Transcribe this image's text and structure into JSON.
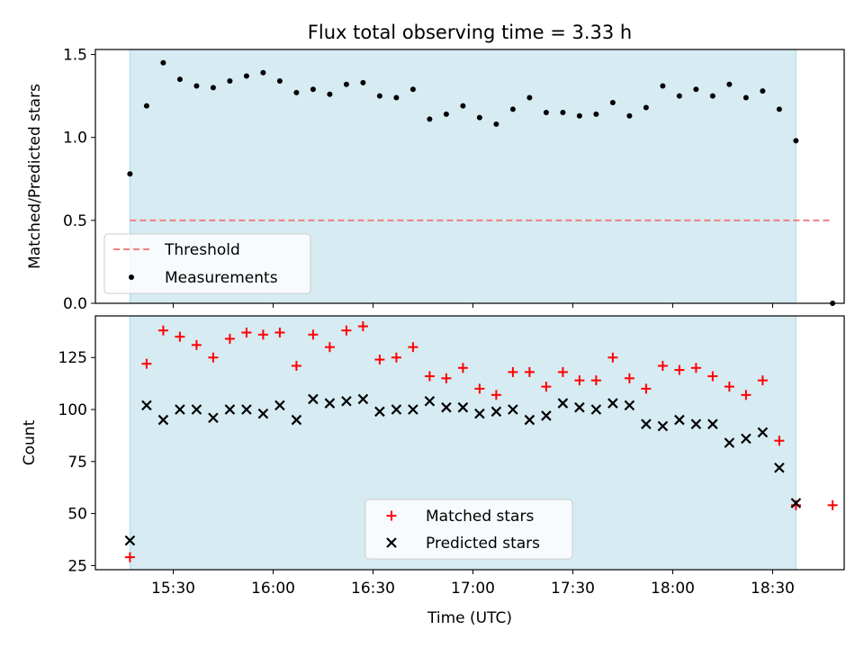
{
  "figure": {
    "title": "Flux total observing time = 3.33 h"
  },
  "colors": {
    "shade": "#add8e6",
    "threshold": "#f08080",
    "measurement": "#000000",
    "matched": "#ff0000",
    "predicted": "#000000"
  },
  "chart_data": [
    {
      "type": "scatter",
      "title": "Flux total observing time = 3.33 h",
      "xlabel": "",
      "ylabel": "Matched/Predicted stars",
      "ylim": [
        0,
        1.53
      ],
      "yticks": [
        "0.0",
        "0.5",
        "1.0",
        "1.5"
      ],
      "grid": false,
      "legend_position": "lower-left",
      "legend": [
        "Threshold",
        "Measurements"
      ],
      "shaded_span": {
        "x_start": "15:17",
        "x_end": "18:37"
      },
      "threshold": {
        "name": "Threshold",
        "y": 0.5,
        "x_start": "15:17",
        "x_end": "18:48",
        "style": "dashed"
      },
      "series": [
        {
          "name": "Measurements",
          "marker": "dot",
          "x": [
            "15:17",
            "15:22",
            "15:27",
            "15:32",
            "15:37",
            "15:42",
            "15:47",
            "15:52",
            "15:57",
            "16:02",
            "16:07",
            "16:12",
            "16:17",
            "16:22",
            "16:27",
            "16:32",
            "16:37",
            "16:42",
            "16:47",
            "16:52",
            "16:57",
            "17:02",
            "17:07",
            "17:12",
            "17:17",
            "17:22",
            "17:27",
            "17:32",
            "17:37",
            "17:42",
            "17:47",
            "17:52",
            "17:57",
            "18:02",
            "18:07",
            "18:12",
            "18:17",
            "18:22",
            "18:27",
            "18:32",
            "18:37",
            "18:48"
          ],
          "y": [
            0.78,
            1.19,
            1.45,
            1.35,
            1.31,
            1.3,
            1.34,
            1.37,
            1.39,
            1.34,
            1.27,
            1.29,
            1.26,
            1.32,
            1.33,
            1.25,
            1.24,
            1.29,
            1.11,
            1.14,
            1.19,
            1.12,
            1.08,
            1.17,
            1.24,
            1.15,
            1.15,
            1.13,
            1.14,
            1.21,
            1.13,
            1.18,
            1.31,
            1.25,
            1.29,
            1.25,
            1.32,
            1.24,
            1.28,
            1.17,
            0.98,
            0.0
          ]
        }
      ]
    },
    {
      "type": "scatter",
      "xlabel": "Time (UTC)",
      "ylabel": "Count",
      "ylim": [
        23,
        145
      ],
      "yticks": [
        "25",
        "50",
        "75",
        "100",
        "125"
      ],
      "xticks": [
        "15:30",
        "16:00",
        "16:30",
        "17:00",
        "17:30",
        "18:00",
        "18:30"
      ],
      "grid": false,
      "legend_position": "lower-center",
      "legend": [
        "Matched stars",
        "Predicted stars"
      ],
      "shaded_span": {
        "x_start": "15:17",
        "x_end": "18:37"
      },
      "series": [
        {
          "name": "Matched stars",
          "marker": "plus",
          "x": [
            "15:17",
            "15:22",
            "15:27",
            "15:32",
            "15:37",
            "15:42",
            "15:47",
            "15:52",
            "15:57",
            "16:02",
            "16:07",
            "16:12",
            "16:17",
            "16:22",
            "16:27",
            "16:32",
            "16:37",
            "16:42",
            "16:47",
            "16:52",
            "16:57",
            "17:02",
            "17:07",
            "17:12",
            "17:17",
            "17:22",
            "17:27",
            "17:32",
            "17:37",
            "17:42",
            "17:47",
            "17:52",
            "17:57",
            "18:02",
            "18:07",
            "18:12",
            "18:17",
            "18:22",
            "18:27",
            "18:32",
            "18:37",
            "18:48"
          ],
          "y": [
            29,
            122,
            138,
            135,
            131,
            125,
            134,
            137,
            136,
            137,
            121,
            136,
            130,
            138,
            140,
            124,
            125,
            130,
            116,
            115,
            120,
            110,
            107,
            118,
            118,
            111,
            118,
            114,
            114,
            125,
            115,
            110,
            121,
            119,
            120,
            116,
            111,
            107,
            114,
            85,
            54,
            54
          ]
        },
        {
          "name": "Predicted stars",
          "marker": "x",
          "x": [
            "15:17",
            "15:22",
            "15:27",
            "15:32",
            "15:37",
            "15:42",
            "15:47",
            "15:52",
            "15:57",
            "16:02",
            "16:07",
            "16:12",
            "16:17",
            "16:22",
            "16:27",
            "16:32",
            "16:37",
            "16:42",
            "16:47",
            "16:52",
            "16:57",
            "17:02",
            "17:07",
            "17:12",
            "17:17",
            "17:22",
            "17:27",
            "17:32",
            "17:37",
            "17:42",
            "17:47",
            "17:52",
            "17:57",
            "18:02",
            "18:07",
            "18:12",
            "18:17",
            "18:22",
            "18:27",
            "18:32",
            "18:37"
          ],
          "y": [
            37,
            102,
            95,
            100,
            100,
            96,
            100,
            100,
            98,
            102,
            95,
            105,
            103,
            104,
            105,
            99,
            100,
            100,
            104,
            101,
            101,
            98,
            99,
            100,
            95,
            97,
            103,
            101,
            100,
            103,
            102,
            93,
            92,
            95,
            93,
            93,
            84,
            86,
            89,
            72,
            55
          ]
        }
      ]
    }
  ]
}
